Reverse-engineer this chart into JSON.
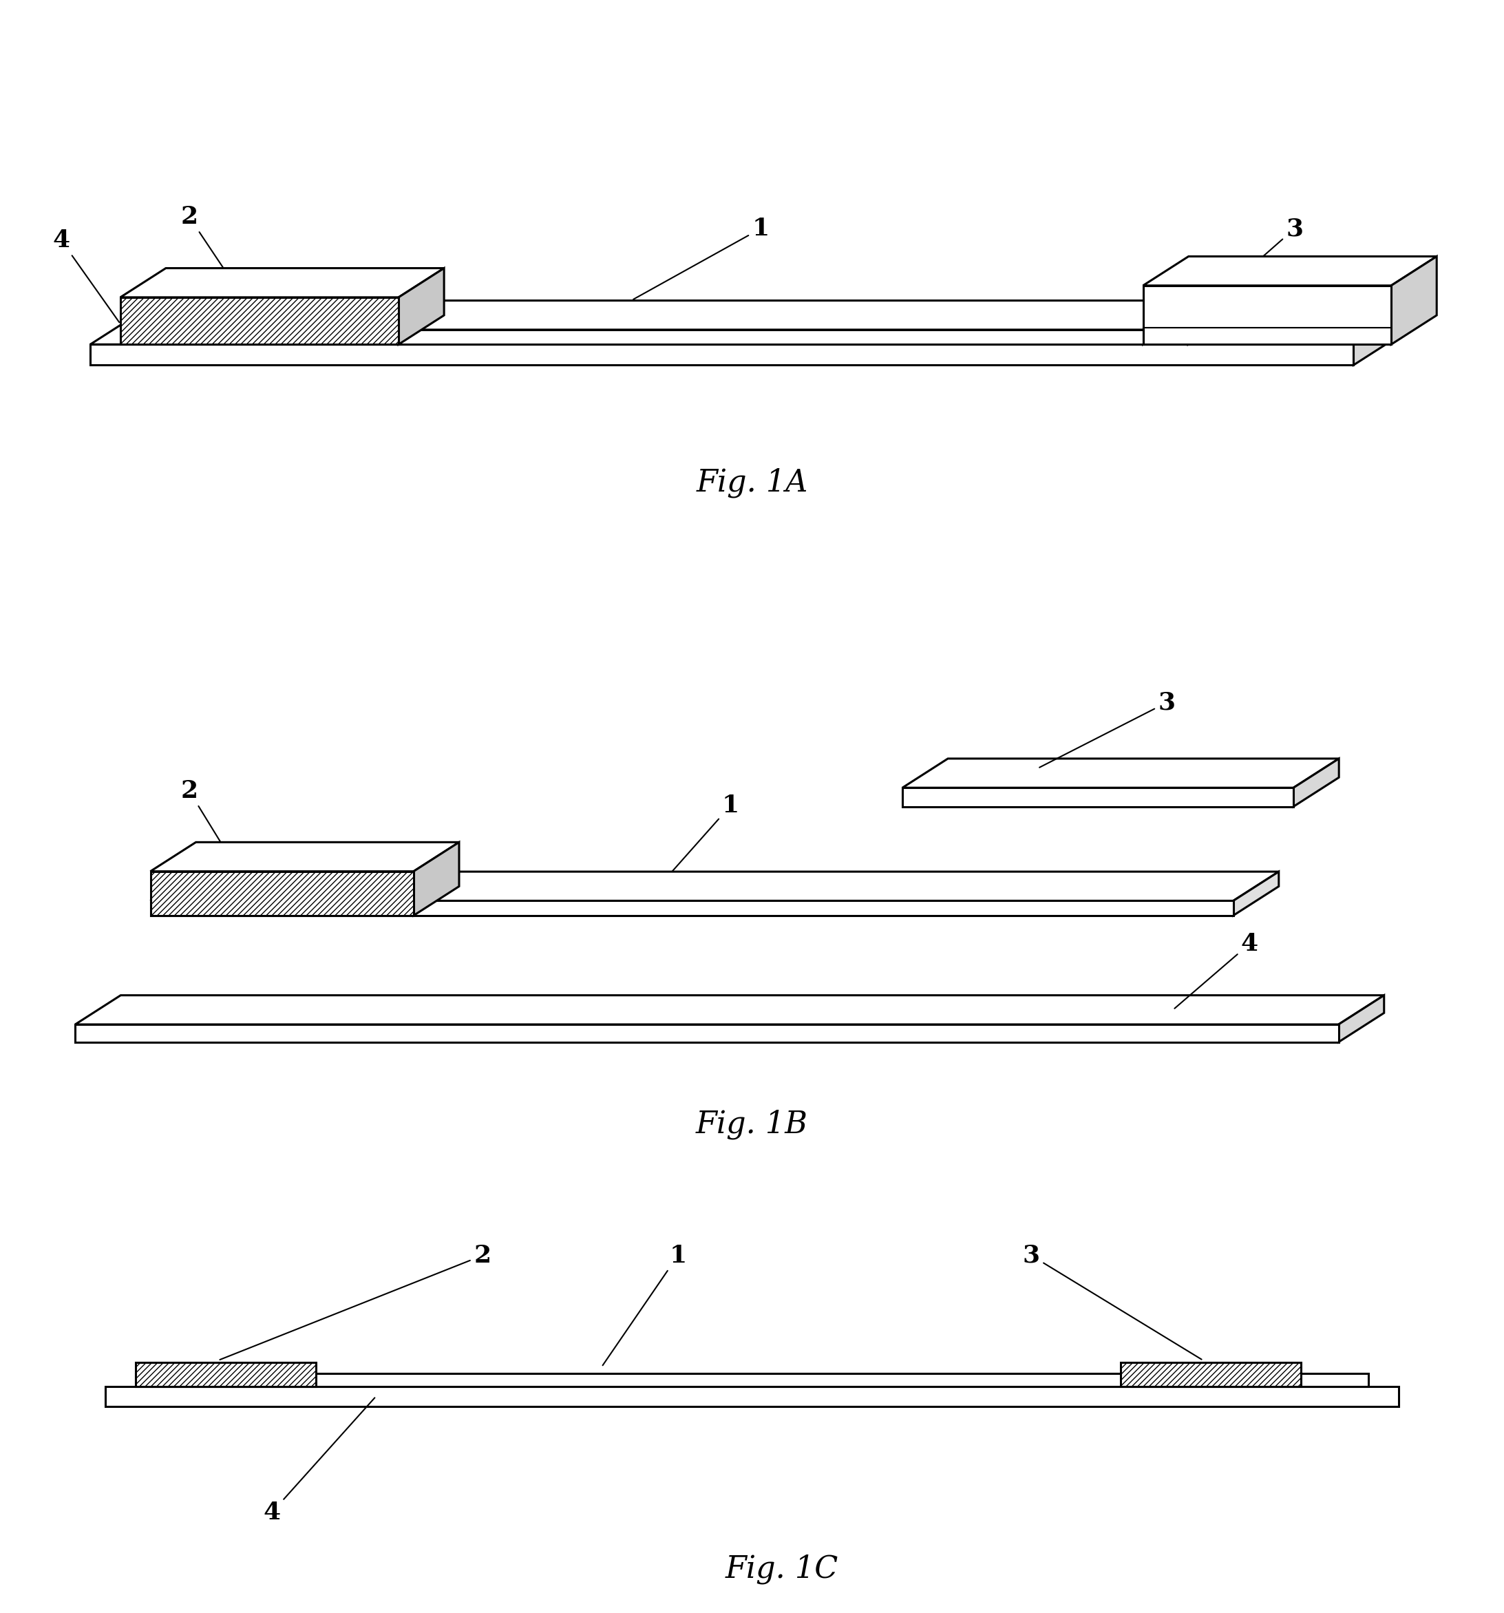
{
  "background_color": "#ffffff",
  "line_color": "#000000",
  "fig_labels": [
    "Fig. 1A",
    "Fig. 1B",
    "Fig. 1C"
  ],
  "font_size_label": 26,
  "font_size_fig": 32,
  "lw": 2.2
}
